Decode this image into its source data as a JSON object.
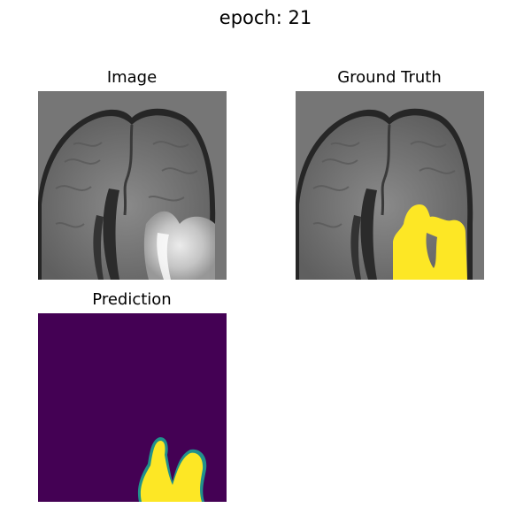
{
  "figure": {
    "title": "epoch: 21"
  },
  "panels": [
    {
      "title": "Image"
    },
    {
      "title": "Ground Truth"
    },
    {
      "title": "Prediction"
    }
  ],
  "colors": {
    "background_gray": "#767676",
    "overlay_yellow": "#FDE725",
    "prediction_background": "#440154",
    "prediction_edge": "#21918C"
  }
}
